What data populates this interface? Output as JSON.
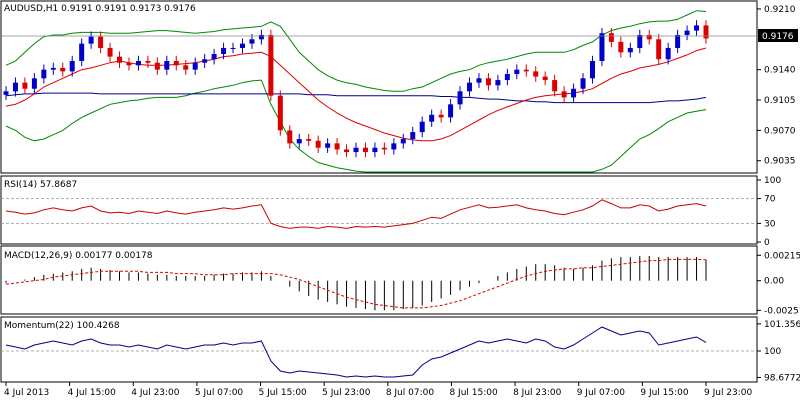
{
  "symbol_header": "AUDUSD,H1  0.9191 0.9191 0.9173 0.9176",
  "current_price_label": "0.9176",
  "colors": {
    "bull_candle": "#0000cc",
    "bear_candle": "#dd0000",
    "bollinger": "#008800",
    "ma_fast": "#dd0000",
    "ma_slow": "#000088",
    "rsi": "#cc0000",
    "macd_hist": "#000000",
    "macd_signal": "#dd0000",
    "momentum": "#000088"
  },
  "price_axis_ticks": [
    "0.9210",
    "0.9140",
    "0.9105",
    "0.9070",
    "0.9035"
  ],
  "rsi_label": "RSI(14) 57.8687",
  "rsi_axis_ticks": [
    "100",
    "70",
    "30",
    "0"
  ],
  "macd_label": "MACD(12,26,9) 0.00177 0.00178",
  "macd_axis_ticks": [
    "0.00215",
    "0.00",
    "-0.00251"
  ],
  "momentum_label": "Momentum(22) 100.4268",
  "momentum_axis_ticks": [
    "101.3566",
    "100",
    "98.6772"
  ],
  "time_axis_labels": [
    "4 Jul 2013",
    "4 Jul 15:00",
    "4 Jul 23:00",
    "5 Jul 07:00",
    "5 Jul 15:00",
    "5 Jul 23:00",
    "8 Jul 07:00",
    "8 Jul 15:00",
    "8 Jul 23:00",
    "9 Jul 07:00",
    "9 Jul 15:00",
    "9 Jul 23:00"
  ],
  "chart_data": [
    {
      "type": "candlestick",
      "title": "AUDUSD,H1",
      "ylim": [
        0.9022,
        0.9218
      ],
      "x_labels": [
        "4 Jul 2013",
        "4 Jul 15:00",
        "4 Jul 23:00",
        "5 Jul 07:00",
        "5 Jul 15:00",
        "5 Jul 23:00",
        "8 Jul 07:00",
        "8 Jul 15:00",
        "8 Jul 23:00",
        "9 Jul 07:00",
        "9 Jul 15:00",
        "9 Jul 23:00"
      ],
      "last": {
        "open": 0.9191,
        "high": 0.9191,
        "low": 0.9173,
        "close": 0.9176
      },
      "candles_close": [
        0.9115,
        0.9125,
        0.9118,
        0.913,
        0.914,
        0.9142,
        0.9138,
        0.915,
        0.917,
        0.9178,
        0.9165,
        0.9155,
        0.9148,
        0.9145,
        0.915,
        0.9148,
        0.914,
        0.915,
        0.9145,
        0.914,
        0.9148,
        0.9152,
        0.9158,
        0.9165,
        0.9165,
        0.917,
        0.9175,
        0.918,
        0.911,
        0.907,
        0.9055,
        0.906,
        0.9058,
        0.905,
        0.9055,
        0.9048,
        0.9045,
        0.905,
        0.9045,
        0.905,
        0.9048,
        0.9055,
        0.906,
        0.9068,
        0.908,
        0.9088,
        0.9085,
        0.91,
        0.9115,
        0.9125,
        0.913,
        0.9122,
        0.9128,
        0.9135,
        0.914,
        0.9138,
        0.9132,
        0.9128,
        0.9115,
        0.9108,
        0.9118,
        0.913,
        0.915,
        0.9182,
        0.9172,
        0.916,
        0.9165,
        0.918,
        0.9175,
        0.9152,
        0.9165,
        0.918,
        0.9185,
        0.9191,
        0.9176
      ],
      "bollinger_upper": [
        0.9145,
        0.915,
        0.916,
        0.917,
        0.9178,
        0.918,
        0.918,
        0.9182,
        0.9183,
        0.9183,
        0.9183,
        0.9182,
        0.9182,
        0.9182,
        0.9183,
        0.9184,
        0.9185,
        0.9185,
        0.9184,
        0.9183,
        0.9182,
        0.9183,
        0.9184,
        0.9186,
        0.9187,
        0.9188,
        0.9189,
        0.919,
        0.9195,
        0.919,
        0.9175,
        0.916,
        0.915,
        0.914,
        0.9133,
        0.9128,
        0.9125,
        0.9123,
        0.912,
        0.9118,
        0.9116,
        0.9115,
        0.9115,
        0.9118,
        0.912,
        0.9125,
        0.913,
        0.9135,
        0.9138,
        0.914,
        0.9145,
        0.9148,
        0.915,
        0.9152,
        0.9155,
        0.9158,
        0.916,
        0.916,
        0.916,
        0.916,
        0.9163,
        0.9168,
        0.9172,
        0.918,
        0.9185,
        0.9188,
        0.919,
        0.9193,
        0.9195,
        0.9196,
        0.9196,
        0.9198,
        0.9203,
        0.9208,
        0.9207
      ],
      "bollinger_lower": [
        0.9075,
        0.907,
        0.9062,
        0.9058,
        0.906,
        0.9065,
        0.907,
        0.9078,
        0.9085,
        0.909,
        0.9095,
        0.91,
        0.9102,
        0.9104,
        0.9105,
        0.9107,
        0.9108,
        0.9108,
        0.9108,
        0.911,
        0.9113,
        0.9115,
        0.9118,
        0.912,
        0.9122,
        0.9125,
        0.9127,
        0.9128,
        0.91,
        0.908,
        0.906,
        0.9048,
        0.904,
        0.9033,
        0.903,
        0.9027,
        0.9025,
        0.9023,
        0.9022,
        0.9022,
        0.9022,
        0.9022,
        0.9022,
        0.9022,
        0.9022,
        0.9022,
        0.9022,
        0.9022,
        0.9022,
        0.9022,
        0.9022,
        0.9022,
        0.9022,
        0.9022,
        0.9022,
        0.9022,
        0.9022,
        0.9022,
        0.9022,
        0.9022,
        0.9022,
        0.9022,
        0.9022,
        0.9025,
        0.903,
        0.904,
        0.905,
        0.906,
        0.9065,
        0.9072,
        0.908,
        0.9085,
        0.909,
        0.9092,
        0.9094
      ],
      "ma_fast": [
        0.9098,
        0.91,
        0.9105,
        0.9112,
        0.912,
        0.9125,
        0.913,
        0.9135,
        0.914,
        0.9142,
        0.9145,
        0.9148,
        0.915,
        0.9148,
        0.9146,
        0.9145,
        0.9145,
        0.9145,
        0.9146,
        0.9147,
        0.9148,
        0.915,
        0.9152,
        0.9155,
        0.9156,
        0.9158,
        0.9159,
        0.916,
        0.9155,
        0.9145,
        0.9135,
        0.9125,
        0.9115,
        0.9105,
        0.9097,
        0.909,
        0.9084,
        0.9079,
        0.9075,
        0.9071,
        0.9067,
        0.9064,
        0.9061,
        0.9059,
        0.9058,
        0.9058,
        0.906,
        0.9064,
        0.907,
        0.9076,
        0.9082,
        0.9088,
        0.9093,
        0.9097,
        0.9101,
        0.9105,
        0.9108,
        0.911,
        0.9111,
        0.9112,
        0.9113,
        0.9115,
        0.9118,
        0.9124,
        0.913,
        0.9135,
        0.9138,
        0.9142,
        0.9144,
        0.9146,
        0.9149,
        0.9153,
        0.9157,
        0.9162,
        0.9165
      ],
      "ma_slow": [
        0.911,
        0.9111,
        0.9112,
        0.9112,
        0.9113,
        0.9113,
        0.9113,
        0.9113,
        0.9113,
        0.9113,
        0.9112,
        0.9112,
        0.9112,
        0.9112,
        0.9112,
        0.9112,
        0.9112,
        0.9112,
        0.9112,
        0.9112,
        0.9112,
        0.9112,
        0.9112,
        0.9112,
        0.9112,
        0.9112,
        0.9112,
        0.9112,
        0.9112,
        0.9112,
        0.9112,
        0.9112,
        0.9111,
        0.9111,
        0.9111,
        0.911,
        0.911,
        0.911,
        0.911,
        0.911,
        0.911,
        0.911,
        0.911,
        0.911,
        0.911,
        0.911,
        0.9109,
        0.9109,
        0.9108,
        0.9108,
        0.9107,
        0.9106,
        0.9106,
        0.9105,
        0.9104,
        0.9104,
        0.9103,
        0.9103,
        0.9102,
        0.9102,
        0.9102,
        0.9102,
        0.9102,
        0.9102,
        0.9102,
        0.9102,
        0.9102,
        0.9102,
        0.9102,
        0.9103,
        0.9104,
        0.9104,
        0.9105,
        0.9106,
        0.9108
      ]
    },
    {
      "type": "line",
      "title": "RSI(14)",
      "ylim": [
        0,
        100
      ],
      "levels": [
        70,
        30
      ],
      "values": [
        50,
        48,
        45,
        47,
        52,
        55,
        52,
        50,
        55,
        58,
        50,
        47,
        48,
        46,
        50,
        48,
        46,
        50,
        47,
        45,
        48,
        50,
        52,
        55,
        53,
        55,
        58,
        60,
        30,
        25,
        22,
        24,
        24,
        22,
        25,
        24,
        22,
        25,
        24,
        25,
        24,
        26,
        28,
        30,
        35,
        40,
        38,
        45,
        52,
        56,
        60,
        55,
        56,
        58,
        60,
        55,
        52,
        50,
        46,
        44,
        48,
        52,
        58,
        68,
        62,
        55,
        55,
        60,
        58,
        50,
        53,
        58,
        60,
        62,
        58
      ]
    },
    {
      "type": "bar",
      "title": "MACD(12,26,9)",
      "ylim": [
        -0.00265,
        0.0026
      ],
      "values": [
        -0.0002,
        0.0,
        0.0001,
        0.0003,
        0.0005,
        0.0006,
        0.0007,
        0.0008,
        0.001,
        0.0011,
        0.001,
        0.0009,
        0.0008,
        0.0007,
        0.0007,
        0.0006,
        0.0005,
        0.0005,
        0.0004,
        0.0004,
        0.0004,
        0.0004,
        0.0005,
        0.0006,
        0.0006,
        0.0007,
        0.0007,
        0.0008,
        0.0004,
        0.0,
        -0.0005,
        -0.0009,
        -0.0013,
        -0.0016,
        -0.0018,
        -0.002,
        -0.0022,
        -0.0023,
        -0.0024,
        -0.0025,
        -0.0025,
        -0.0025,
        -0.0024,
        -0.0023,
        -0.0021,
        -0.0018,
        -0.0015,
        -0.0012,
        -0.0008,
        -0.0005,
        -0.0002,
        0.0,
        0.0004,
        0.0007,
        0.001,
        0.0012,
        0.0014,
        0.0014,
        0.0013,
        0.0011,
        0.001,
        0.0011,
        0.0013,
        0.0017,
        0.0019,
        0.002,
        0.002,
        0.0021,
        0.0021,
        0.002,
        0.002,
        0.002,
        0.002,
        0.002,
        0.00177
      ],
      "signal": [
        -0.0003,
        -0.0002,
        -0.0001,
        0.0,
        0.0001,
        0.0003,
        0.0004,
        0.0005,
        0.0006,
        0.0007,
        0.0008,
        0.0008,
        0.0008,
        0.0008,
        0.0008,
        0.0007,
        0.0007,
        0.0007,
        0.0006,
        0.0006,
        0.0006,
        0.0005,
        0.0005,
        0.0005,
        0.0006,
        0.0006,
        0.0006,
        0.0006,
        0.0006,
        0.0005,
        0.0003,
        0.0001,
        -0.0002,
        -0.0005,
        -0.0008,
        -0.0011,
        -0.0014,
        -0.0016,
        -0.0018,
        -0.002,
        -0.0021,
        -0.0022,
        -0.0023,
        -0.0023,
        -0.0023,
        -0.0022,
        -0.0021,
        -0.0019,
        -0.0017,
        -0.0014,
        -0.0011,
        -0.0008,
        -0.0005,
        -0.0002,
        0.0001,
        0.0004,
        0.0006,
        0.0008,
        0.0009,
        0.001,
        0.001,
        0.0011,
        0.0011,
        0.0012,
        0.0013,
        0.0014,
        0.0015,
        0.0016,
        0.0017,
        0.0017,
        0.0018,
        0.0018,
        0.0018,
        0.0018,
        0.00178
      ]
    },
    {
      "type": "line",
      "title": "Momentum(22)",
      "ylim": [
        98.55,
        101.5
      ],
      "levels": [
        100
      ],
      "values": [
        100.3,
        100.2,
        100.1,
        100.3,
        100.4,
        100.5,
        100.4,
        100.3,
        100.5,
        100.6,
        100.4,
        100.3,
        100.3,
        100.2,
        100.3,
        100.2,
        100.1,
        100.3,
        100.2,
        100.1,
        100.2,
        100.3,
        100.3,
        100.4,
        100.3,
        100.4,
        100.4,
        100.5,
        99.5,
        99.0,
        98.9,
        99.0,
        98.95,
        98.9,
        98.85,
        98.8,
        98.7,
        98.75,
        98.7,
        98.75,
        98.7,
        98.7,
        98.75,
        98.8,
        99.3,
        99.6,
        99.7,
        99.9,
        100.1,
        100.3,
        100.5,
        100.4,
        100.5,
        100.6,
        100.5,
        100.4,
        100.6,
        100.5,
        100.2,
        100.1,
        100.3,
        100.6,
        100.9,
        101.2,
        101.0,
        100.8,
        100.9,
        101.0,
        100.9,
        100.3,
        100.4,
        100.5,
        100.6,
        100.7,
        100.43
      ]
    }
  ]
}
